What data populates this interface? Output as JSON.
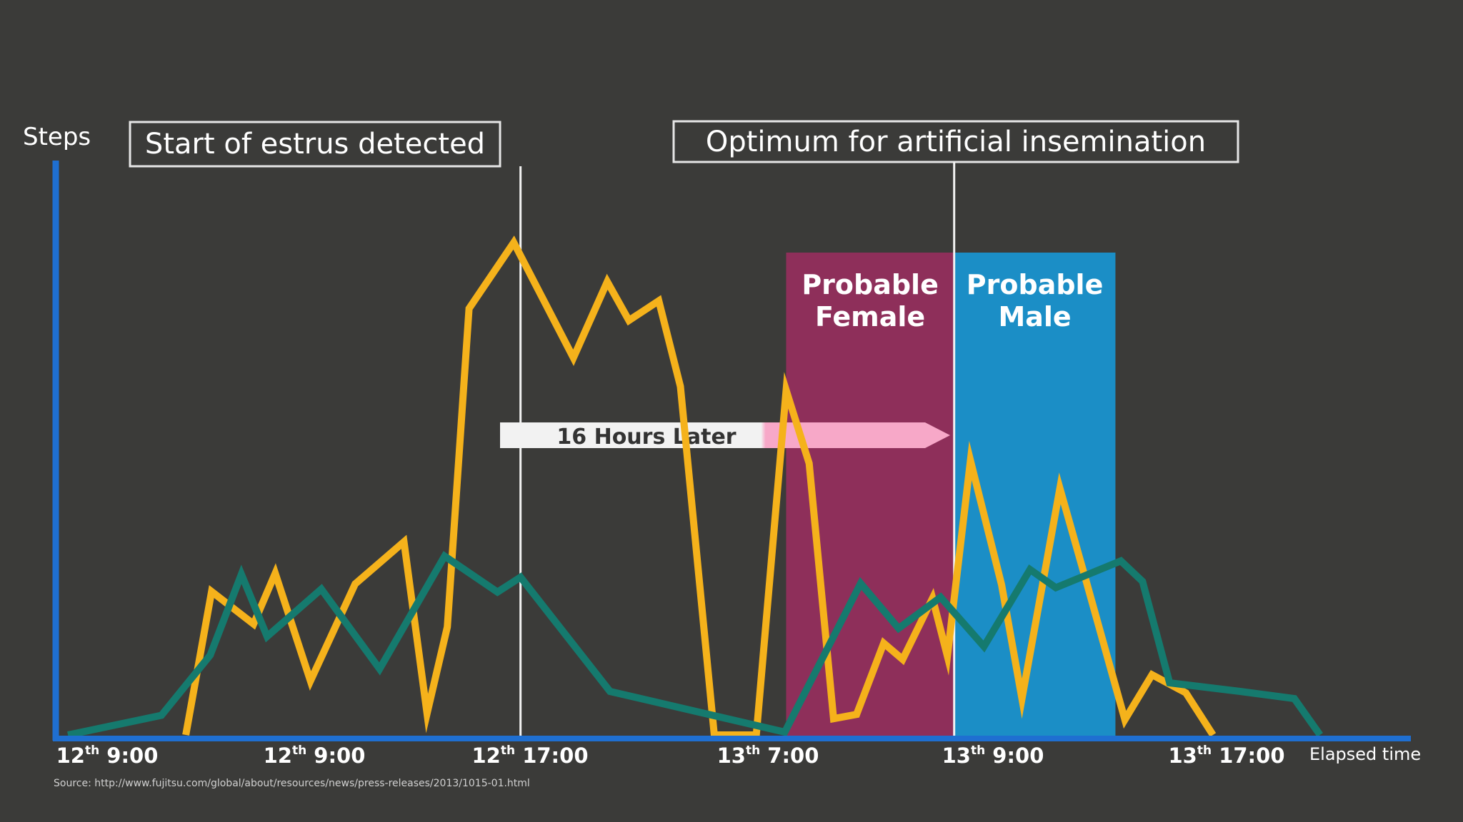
{
  "slide": {
    "background": "#3b3b39",
    "source_text": "Source: http://www.fujitsu.com/global/about/resources/news/press-releases/2013/1015-01.html"
  },
  "chart_data": {
    "type": "line",
    "ylabel": "Steps",
    "xlabel": "Elapsed time",
    "x_ticks": [
      {
        "day": "12",
        "sup": "th",
        "time": "9:00"
      },
      {
        "day": "12",
        "sup": "th",
        "time": "9:00"
      },
      {
        "day": "12",
        "sup": "th",
        "time": "17:00"
      },
      {
        "day": "13",
        "sup": "th",
        "time": "7:00"
      },
      {
        "day": "13",
        "sup": "th",
        "time": "9:00"
      },
      {
        "day": "13",
        "sup": "th",
        "time": "17:00"
      }
    ],
    "x_range": [
      0,
      100
    ],
    "y_range": [
      0,
      100
    ],
    "axis_color": "#1f6fd1",
    "series": [
      {
        "color": "#f5b21b",
        "points": [
          [
            9.6,
            0
          ],
          [
            11.5,
            30
          ],
          [
            14.6,
            23.2
          ],
          [
            16.2,
            33.8
          ],
          [
            18.8,
            11.3
          ],
          [
            22.1,
            31.6
          ],
          [
            25.7,
            40.4
          ],
          [
            27.4,
            4.5
          ],
          [
            28.9,
            22.6
          ],
          [
            30.5,
            89.2
          ],
          [
            33.8,
            103
          ],
          [
            38.2,
            78.9
          ],
          [
            40.7,
            94.8
          ],
          [
            42.3,
            86.7
          ],
          [
            44.5,
            90.8
          ],
          [
            46.1,
            72.9
          ],
          [
            48.6,
            0
          ],
          [
            51.7,
            0
          ],
          [
            53.9,
            72.1
          ],
          [
            55.6,
            56.8
          ],
          [
            57.4,
            3.4
          ],
          [
            59.1,
            4.3
          ],
          [
            61.1,
            19.2
          ],
          [
            62.5,
            15.8
          ],
          [
            64.7,
            28.6
          ],
          [
            65.8,
            16.5
          ],
          [
            67.5,
            57.4
          ],
          [
            69.8,
            31.4
          ],
          [
            71.3,
            7.6
          ],
          [
            74.1,
            51.6
          ],
          [
            76.1,
            31.6
          ],
          [
            78.9,
            3.2
          ],
          [
            80.9,
            12.6
          ],
          [
            83.4,
            8.8
          ],
          [
            85.4,
            0
          ]
        ]
      },
      {
        "color": "#157a6e",
        "points": [
          [
            0.9,
            0
          ],
          [
            7.8,
            4.1
          ],
          [
            11.4,
            16.7
          ],
          [
            13.7,
            33.6
          ],
          [
            15.6,
            20.6
          ],
          [
            19.6,
            30.5
          ],
          [
            23.9,
            13.8
          ],
          [
            28.7,
            37.4
          ],
          [
            32.6,
            29.9
          ],
          [
            34.3,
            33
          ],
          [
            40.9,
            9.1
          ],
          [
            53.8,
            0.6
          ],
          [
            59.4,
            31.7
          ],
          [
            62.2,
            22.3
          ],
          [
            65.3,
            28.8
          ],
          [
            68.5,
            18.5
          ],
          [
            71.9,
            34.6
          ],
          [
            73.8,
            30.8
          ],
          [
            78.6,
            36.4
          ],
          [
            80.2,
            32.1
          ],
          [
            82.2,
            10.9
          ],
          [
            87.4,
            9.1
          ],
          [
            91.4,
            7.6
          ],
          [
            93.3,
            0
          ]
        ]
      }
    ],
    "regions": [
      {
        "label_line1": "Probable",
        "label_line2": "Female",
        "x_start": 53.9,
        "x_end": 66.3,
        "color": "#8e2f5a"
      },
      {
        "label_line1": "Probable",
        "label_line2": "Male",
        "x_start": 66.3,
        "x_end": 78.2,
        "color": "#1b8ec6"
      }
    ],
    "annotations": {
      "estrus_label": "Start of estrus detected",
      "estrus_x": 34.3,
      "optimum_label": "Optimum for artificial insemination",
      "optimum_x": 66.3,
      "arrow_label": "16 Hours Later"
    }
  }
}
